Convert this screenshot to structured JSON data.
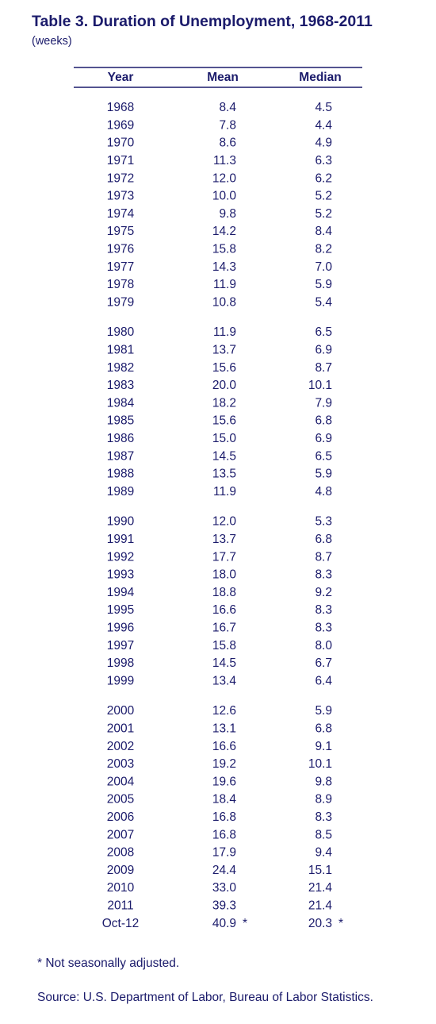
{
  "header": {
    "title": "Table 3.  Duration of Unemployment, 1968-2011",
    "subtitle": "(weeks)"
  },
  "table": {
    "columns": [
      "Year",
      "Mean",
      "Median"
    ],
    "groups": [
      [
        [
          "1968",
          "8.4",
          "4.5"
        ],
        [
          "1969",
          "7.8",
          "4.4"
        ],
        [
          "1970",
          "8.6",
          "4.9"
        ],
        [
          "1971",
          "11.3",
          "6.3"
        ],
        [
          "1972",
          "12.0",
          "6.2"
        ],
        [
          "1973",
          "10.0",
          "5.2"
        ],
        [
          "1974",
          "9.8",
          "5.2"
        ],
        [
          "1975",
          "14.2",
          "8.4"
        ],
        [
          "1976",
          "15.8",
          "8.2"
        ],
        [
          "1977",
          "14.3",
          "7.0"
        ],
        [
          "1978",
          "11.9",
          "5.9"
        ],
        [
          "1979",
          "10.8",
          "5.4"
        ]
      ],
      [
        [
          "1980",
          "11.9",
          "6.5"
        ],
        [
          "1981",
          "13.7",
          "6.9"
        ],
        [
          "1982",
          "15.6",
          "8.7"
        ],
        [
          "1983",
          "20.0",
          "10.1"
        ],
        [
          "1984",
          "18.2",
          "7.9"
        ],
        [
          "1985",
          "15.6",
          "6.8"
        ],
        [
          "1986",
          "15.0",
          "6.9"
        ],
        [
          "1987",
          "14.5",
          "6.5"
        ],
        [
          "1988",
          "13.5",
          "5.9"
        ],
        [
          "1989",
          "11.9",
          "4.8"
        ]
      ],
      [
        [
          "1990",
          "12.0",
          "5.3"
        ],
        [
          "1991",
          "13.7",
          "6.8"
        ],
        [
          "1992",
          "17.7",
          "8.7"
        ],
        [
          "1993",
          "18.0",
          "8.3"
        ],
        [
          "1994",
          "18.8",
          "9.2"
        ],
        [
          "1995",
          "16.6",
          "8.3"
        ],
        [
          "1996",
          "16.7",
          "8.3"
        ],
        [
          "1997",
          "15.8",
          "8.0"
        ],
        [
          "1998",
          "14.5",
          "6.7"
        ],
        [
          "1999",
          "13.4",
          "6.4"
        ]
      ],
      [
        [
          "2000",
          "12.6",
          "5.9"
        ],
        [
          "2001",
          "13.1",
          "6.8"
        ],
        [
          "2002",
          "16.6",
          "9.1"
        ],
        [
          "2003",
          "19.2",
          "10.1"
        ],
        [
          "2004",
          "19.6",
          "9.8"
        ],
        [
          "2005",
          "18.4",
          "8.9"
        ],
        [
          "2006",
          "16.8",
          "8.3"
        ],
        [
          "2007",
          "16.8",
          "8.5"
        ],
        [
          "2008",
          "17.9",
          "9.4"
        ],
        [
          "2009",
          "24.4",
          "15.1"
        ],
        [
          "2010",
          "33.0",
          "21.4"
        ],
        [
          "2011",
          "39.3",
          "21.4"
        ],
        [
          "Oct-12",
          "40.9",
          "20.3"
        ]
      ]
    ],
    "last_row_marks": [
      "*",
      "*"
    ]
  },
  "footnote": "* Not seasonally adjusted.",
  "source": "Source:  U.S. Department of Labor, Bureau of Labor Statistics."
}
